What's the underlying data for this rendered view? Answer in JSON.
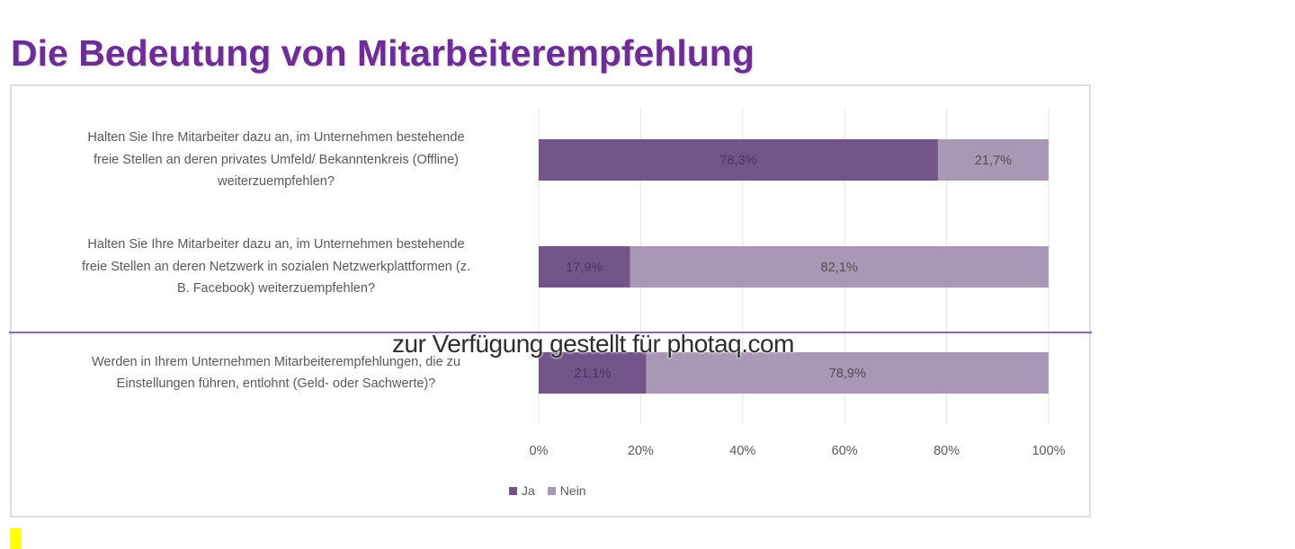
{
  "title": "Die Bedeutung von Mitarbeiterempfehlung",
  "watermark": "zur Verfügung gestellt für photaq.com",
  "colors": {
    "title": "#6e2d96",
    "ja": "#735488",
    "nein": "#a898b6",
    "divider": "#8a6aa8",
    "marker": "#ffff00"
  },
  "chart_data": {
    "type": "bar",
    "orientation": "horizontal",
    "stacked": true,
    "categories": [
      {
        "lines": [
          "Halten Sie Ihre Mitarbeiter dazu an, im Unternehmen bestehende",
          "freie Stellen an deren privates Umfeld/ Bekanntenkreis (Offline)",
          "weiterzuempfehlen?"
        ]
      },
      {
        "lines": [
          "Halten Sie Ihre Mitarbeiter dazu an, im Unternehmen bestehende",
          "freie Stellen an deren Netzwerk in sozialen Netzwerkplattformen (z.",
          "B. Facebook) weiterzuempfehlen?"
        ]
      },
      {
        "lines": [
          "Werden in Ihrem Unternehmen Mitarbeiterempfehlungen, die zu",
          "Einstellungen führen, entlohnt (Geld- oder Sachwerte)?"
        ]
      }
    ],
    "series": [
      {
        "name": "Ja",
        "values": [
          78.3,
          17.9,
          21.1
        ],
        "labels": [
          "78,3%",
          "17,9%",
          "21,1%"
        ]
      },
      {
        "name": "Nein",
        "values": [
          21.7,
          82.1,
          78.9
        ],
        "labels": [
          "21,7%",
          "82,1%",
          "78,9%"
        ]
      }
    ],
    "xlim": [
      0,
      100
    ],
    "xticks": [
      0,
      20,
      40,
      60,
      80,
      100
    ],
    "xtick_labels": [
      "0%",
      "20%",
      "40%",
      "60%",
      "80%",
      "100%"
    ],
    "grid": true,
    "legend_position": "bottom"
  }
}
